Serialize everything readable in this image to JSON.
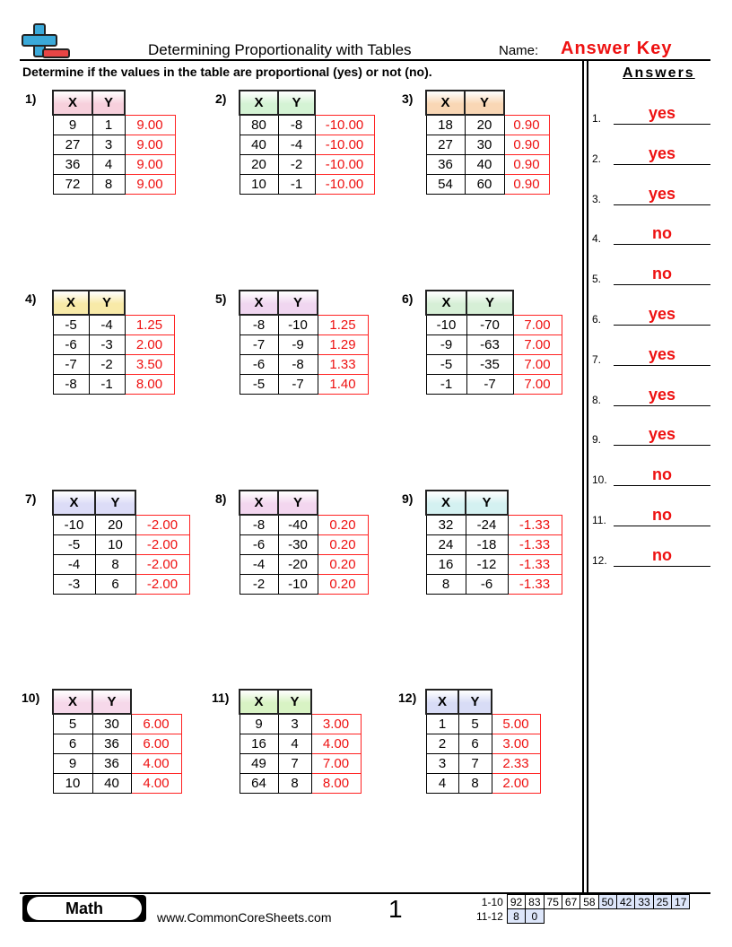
{
  "header": {
    "title": "Determining Proportionality with Tables",
    "name_label": "Name:",
    "answer_key": "Answer Key"
  },
  "instructions": "Determine if the values in the table are proportional (yes) or not (no).",
  "col_headers": [
    "X",
    "Y"
  ],
  "problems": [
    {
      "label": "1)",
      "color": "#f7d0dc",
      "rows": [
        [
          "9",
          "1",
          "9.00"
        ],
        [
          "27",
          "3",
          "9.00"
        ],
        [
          "36",
          "4",
          "9.00"
        ],
        [
          "72",
          "8",
          "9.00"
        ]
      ]
    },
    {
      "label": "2)",
      "color": "#d4f3d4",
      "rows": [
        [
          "80",
          "-8",
          "-10.00"
        ],
        [
          "40",
          "-4",
          "-10.00"
        ],
        [
          "20",
          "-2",
          "-10.00"
        ],
        [
          "10",
          "-1",
          "-10.00"
        ]
      ]
    },
    {
      "label": "3)",
      "color": "#f9d7b5",
      "rows": [
        [
          "18",
          "20",
          "0.90"
        ],
        [
          "27",
          "30",
          "0.90"
        ],
        [
          "36",
          "40",
          "0.90"
        ],
        [
          "54",
          "60",
          "0.90"
        ]
      ]
    },
    {
      "label": "4)",
      "color": "#f8eaa8",
      "rows": [
        [
          "-5",
          "-4",
          "1.25"
        ],
        [
          "-6",
          "-3",
          "2.00"
        ],
        [
          "-7",
          "-2",
          "3.50"
        ],
        [
          "-8",
          "-1",
          "8.00"
        ]
      ]
    },
    {
      "label": "5)",
      "color": "#f0d6f0",
      "rows": [
        [
          "-8",
          "-10",
          "1.25"
        ],
        [
          "-7",
          "-9",
          "1.29"
        ],
        [
          "-6",
          "-8",
          "1.33"
        ],
        [
          "-5",
          "-7",
          "1.40"
        ]
      ]
    },
    {
      "label": "6)",
      "color": "#d6efd6",
      "rows": [
        [
          "-10",
          "-70",
          "7.00"
        ],
        [
          "-9",
          "-63",
          "7.00"
        ],
        [
          "-5",
          "-35",
          "7.00"
        ],
        [
          "-1",
          "-7",
          "7.00"
        ]
      ]
    },
    {
      "label": "7)",
      "color": "#dcdcf7",
      "rows": [
        [
          "-10",
          "20",
          "-2.00"
        ],
        [
          "-5",
          "10",
          "-2.00"
        ],
        [
          "-4",
          "8",
          "-2.00"
        ],
        [
          "-3",
          "6",
          "-2.00"
        ]
      ]
    },
    {
      "label": "8)",
      "color": "#f3d6ef",
      "rows": [
        [
          "-8",
          "-40",
          "0.20"
        ],
        [
          "-6",
          "-30",
          "0.20"
        ],
        [
          "-4",
          "-20",
          "0.20"
        ],
        [
          "-2",
          "-10",
          "0.20"
        ]
      ]
    },
    {
      "label": "9)",
      "color": "#d4f1f1",
      "rows": [
        [
          "32",
          "-24",
          "-1.33"
        ],
        [
          "24",
          "-18",
          "-1.33"
        ],
        [
          "16",
          "-12",
          "-1.33"
        ],
        [
          "8",
          "-6",
          "-1.33"
        ]
      ]
    },
    {
      "label": "10)",
      "color": "#f6d8ea",
      "rows": [
        [
          "5",
          "30",
          "6.00"
        ],
        [
          "6",
          "36",
          "6.00"
        ],
        [
          "9",
          "36",
          "4.00"
        ],
        [
          "10",
          "40",
          "4.00"
        ]
      ]
    },
    {
      "label": "11)",
      "color": "#d8f3c4",
      "rows": [
        [
          "9",
          "3",
          "3.00"
        ],
        [
          "16",
          "4",
          "4.00"
        ],
        [
          "49",
          "7",
          "7.00"
        ],
        [
          "64",
          "8",
          "8.00"
        ]
      ]
    },
    {
      "label": "12)",
      "color": "#d8dcf6",
      "rows": [
        [
          "1",
          "5",
          "5.00"
        ],
        [
          "2",
          "6",
          "3.00"
        ],
        [
          "3",
          "7",
          "2.33"
        ],
        [
          "4",
          "8",
          "2.00"
        ]
      ]
    }
  ],
  "answers": {
    "heading": "Answers",
    "items": [
      {
        "num": "1.",
        "value": "yes"
      },
      {
        "num": "2.",
        "value": "yes"
      },
      {
        "num": "3.",
        "value": "yes"
      },
      {
        "num": "4.",
        "value": "no"
      },
      {
        "num": "5.",
        "value": "no"
      },
      {
        "num": "6.",
        "value": "yes"
      },
      {
        "num": "7.",
        "value": "yes"
      },
      {
        "num": "8.",
        "value": "yes"
      },
      {
        "num": "9.",
        "value": "yes"
      },
      {
        "num": "10.",
        "value": "no"
      },
      {
        "num": "11.",
        "value": "no"
      },
      {
        "num": "12.",
        "value": "no"
      }
    ]
  },
  "footer": {
    "subject": "Math",
    "website": "www.CommonCoreSheets.com",
    "page": "1",
    "score_rows": [
      {
        "label": "1-10",
        "values": [
          "92",
          "83",
          "75",
          "67",
          "58",
          "50",
          "42",
          "33",
          "25",
          "17"
        ]
      },
      {
        "label": "11-12",
        "values": [
          "8",
          "0"
        ]
      }
    ]
  }
}
